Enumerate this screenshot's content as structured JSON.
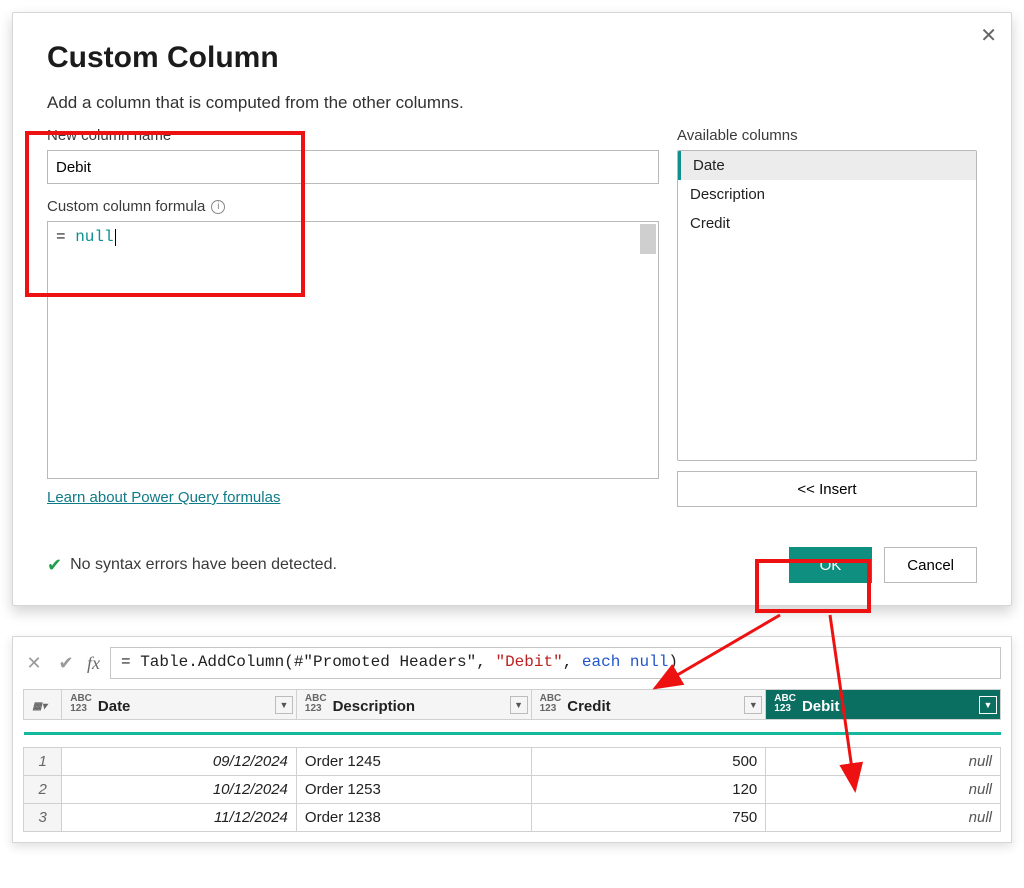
{
  "dialog": {
    "title": "Custom Column",
    "subtitle": "Add a column that is computed from the other columns.",
    "new_col_label": "New column name",
    "new_col_value": "Debit",
    "formula_label": "Custom column formula",
    "formula_prefix": "= ",
    "formula_keyword": "null",
    "available_label": "Available columns",
    "available_columns": [
      "Date",
      "Description",
      "Credit"
    ],
    "insert_label": "<< Insert",
    "learn_link": "Learn about Power Query formulas",
    "status_text": "No syntax errors have been detected.",
    "ok_label": "OK",
    "cancel_label": "Cancel"
  },
  "query": {
    "formula_prefix": "= Table.AddColumn(#\"Promoted Headers\", ",
    "formula_str": "\"Debit\"",
    "formula_mid": ", ",
    "formula_kw1": "each",
    "formula_sp": " ",
    "formula_kw2": "null",
    "formula_suffix": ")",
    "columns": [
      "Date",
      "Description",
      "Credit",
      "Debit"
    ],
    "highlight_col_index": 3,
    "rows": [
      {
        "n": "1",
        "date": "09/12/2024",
        "desc": "Order 1245",
        "credit": "500",
        "debit": "null"
      },
      {
        "n": "2",
        "date": "10/12/2024",
        "desc": "Order 1253",
        "credit": "120",
        "debit": "null"
      },
      {
        "n": "3",
        "date": "11/12/2024",
        "desc": "Order 1238",
        "credit": "750",
        "debit": "null"
      }
    ]
  },
  "colors": {
    "primary": "#0f8f7f",
    "accent_under": "#13b89d",
    "hl_col_bg": "#0a6e60",
    "annotation_red": "#e11"
  }
}
